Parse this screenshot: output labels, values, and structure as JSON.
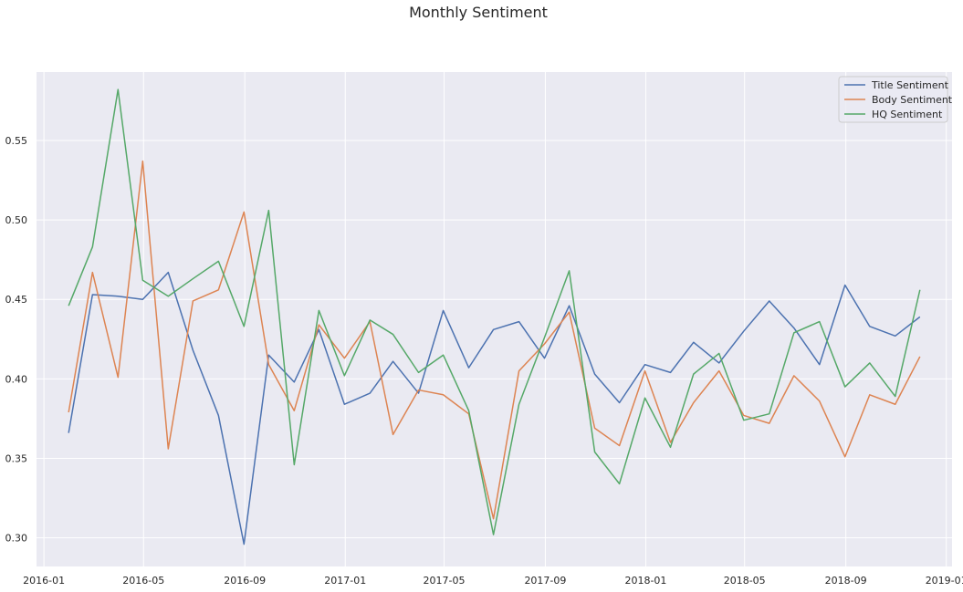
{
  "chart_data": {
    "type": "line",
    "title": "Monthly Sentiment",
    "xlabel": "",
    "ylabel": "",
    "x": [
      "2016-01-31",
      "2016-02-29",
      "2016-03-31",
      "2016-04-30",
      "2016-05-31",
      "2016-06-30",
      "2016-07-31",
      "2016-08-31",
      "2016-09-30",
      "2016-10-31",
      "2016-11-30",
      "2016-12-31",
      "2017-01-31",
      "2017-02-28",
      "2017-03-31",
      "2017-04-30",
      "2017-05-31",
      "2017-06-30",
      "2017-07-31",
      "2017-08-31",
      "2017-09-30",
      "2017-10-31",
      "2017-11-30",
      "2017-12-31",
      "2018-01-31",
      "2018-02-28",
      "2018-03-31",
      "2018-04-30",
      "2018-05-31",
      "2018-06-30",
      "2018-07-31",
      "2018-08-31",
      "2018-09-30",
      "2018-10-31",
      "2018-11-30"
    ],
    "xlim": [
      "2015-12-23",
      "2019-01-08"
    ],
    "ylim": [
      0.282,
      0.593
    ],
    "xticks": [
      {
        "date": "2016-01-01",
        "label": "2016-01"
      },
      {
        "date": "2016-05-01",
        "label": "2016-05"
      },
      {
        "date": "2016-09-01",
        "label": "2016-09"
      },
      {
        "date": "2017-01-01",
        "label": "2017-01"
      },
      {
        "date": "2017-05-01",
        "label": "2017-05"
      },
      {
        "date": "2017-09-01",
        "label": "2017-09"
      },
      {
        "date": "2018-01-01",
        "label": "2018-01"
      },
      {
        "date": "2018-05-01",
        "label": "2018-05"
      },
      {
        "date": "2018-09-01",
        "label": "2018-09"
      },
      {
        "date": "2019-01-01",
        "label": "2019-01"
      }
    ],
    "yticks": [
      {
        "value": 0.3,
        "label": "0.30"
      },
      {
        "value": 0.35,
        "label": "0.35"
      },
      {
        "value": 0.4,
        "label": "0.40"
      },
      {
        "value": 0.45,
        "label": "0.45"
      },
      {
        "value": 0.5,
        "label": "0.50"
      },
      {
        "value": 0.55,
        "label": "0.55"
      }
    ],
    "grid": true,
    "legend_position": "top-right",
    "series": [
      {
        "name": "Title Sentiment",
        "color": "#4c72b0",
        "values": [
          0.366,
          0.453,
          0.452,
          0.45,
          0.467,
          0.418,
          0.377,
          0.296,
          0.415,
          0.398,
          0.431,
          0.384,
          0.391,
          0.411,
          0.391,
          0.443,
          0.407,
          0.431,
          0.436,
          0.413,
          0.446,
          0.403,
          0.385,
          0.409,
          0.404,
          0.423,
          0.41,
          0.43,
          0.449,
          0.432,
          0.409,
          0.459,
          0.433,
          0.427,
          0.439
        ]
      },
      {
        "name": "Body Sentiment",
        "color": "#dd8452",
        "values": [
          0.379,
          0.467,
          0.401,
          0.537,
          0.356,
          0.449,
          0.456,
          0.505,
          0.409,
          0.38,
          0.434,
          0.413,
          0.436,
          0.365,
          0.393,
          0.39,
          0.378,
          0.312,
          0.405,
          0.422,
          0.442,
          0.369,
          0.358,
          0.405,
          0.36,
          0.385,
          0.405,
          0.377,
          0.372,
          0.402,
          0.386,
          0.351,
          0.39,
          0.384,
          0.414
        ]
      },
      {
        "name": "HQ Sentiment",
        "color": "#55a868",
        "values": [
          0.446,
          0.483,
          0.582,
          0.462,
          0.452,
          0.463,
          0.474,
          0.433,
          0.506,
          0.346,
          0.443,
          0.402,
          0.437,
          0.428,
          0.404,
          0.415,
          0.38,
          0.302,
          0.384,
          0.426,
          0.468,
          0.354,
          0.334,
          0.388,
          0.357,
          0.403,
          0.416,
          0.374,
          0.378,
          0.429,
          0.436,
          0.395,
          0.41,
          0.389,
          0.456
        ]
      }
    ]
  }
}
